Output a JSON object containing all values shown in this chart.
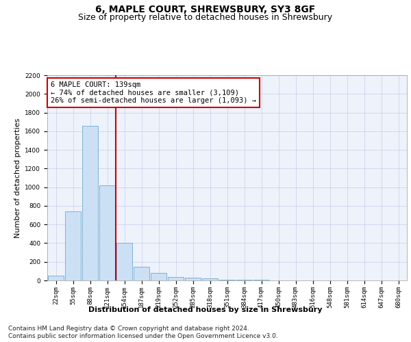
{
  "title": "6, MAPLE COURT, SHREWSBURY, SY3 8GF",
  "subtitle": "Size of property relative to detached houses in Shrewsbury",
  "xlabel": "Distribution of detached houses by size in Shrewsbury",
  "ylabel": "Number of detached properties",
  "footnote1": "Contains HM Land Registry data © Crown copyright and database right 2024.",
  "footnote2": "Contains public sector information licensed under the Open Government Licence v3.0.",
  "annotation_line1": "6 MAPLE COURT: 139sqm",
  "annotation_line2": "← 74% of detached houses are smaller (3,109)",
  "annotation_line3": "26% of semi-detached houses are larger (1,093) →",
  "bin_labels": [
    "22sqm",
    "55sqm",
    "88sqm",
    "121sqm",
    "154sqm",
    "187sqm",
    "219sqm",
    "252sqm",
    "285sqm",
    "318sqm",
    "351sqm",
    "384sqm",
    "417sqm",
    "450sqm",
    "483sqm",
    "516sqm",
    "548sqm",
    "581sqm",
    "614sqm",
    "647sqm",
    "680sqm"
  ],
  "bar_values": [
    50,
    740,
    1660,
    1020,
    400,
    150,
    80,
    40,
    30,
    20,
    10,
    5,
    5,
    2,
    0,
    0,
    0,
    0,
    0,
    0,
    0
  ],
  "bar_color": "#cce0f5",
  "bar_edge_color": "#6fa8d0",
  "vline_color": "#cc0000",
  "ylim": [
    0,
    2200
  ],
  "yticks": [
    0,
    200,
    400,
    600,
    800,
    1000,
    1200,
    1400,
    1600,
    1800,
    2000,
    2200
  ],
  "grid_color": "#c8cfe8",
  "background_color": "#eef2fb",
  "annotation_box_color": "#ffffff",
  "annotation_box_edge": "#cc0000",
  "title_fontsize": 10,
  "subtitle_fontsize": 9,
  "xlabel_fontsize": 8,
  "ylabel_fontsize": 8,
  "tick_fontsize": 6.5,
  "annotation_fontsize": 7.5,
  "footnote_fontsize": 6.5
}
